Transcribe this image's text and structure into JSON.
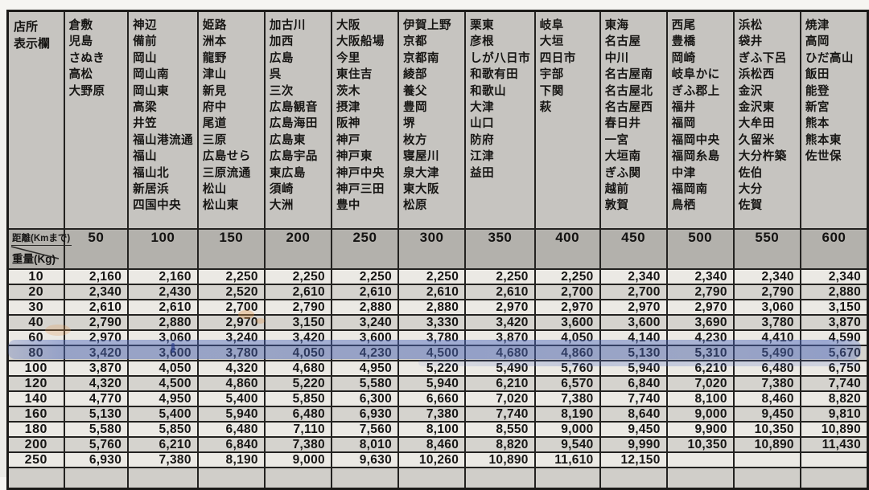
{
  "corner": {
    "line1": "店所",
    "line2": "表示欄"
  },
  "axis": {
    "distance_label": "距離(Kmまで)",
    "weight_label": "重量(Kg)"
  },
  "colors": {
    "highlight": "#5272c4",
    "paper": "#c9c7c3"
  },
  "table": {
    "columns": [
      {
        "distance": "50",
        "places": [
          "倉敷",
          "児島",
          "さぬき",
          "高松",
          "大野原"
        ]
      },
      {
        "distance": "100",
        "places": [
          "神辺",
          "備前",
          "岡山",
          "岡山南",
          "岡山東",
          "高梁",
          "井笠",
          "福山港流通",
          "福山",
          "福山北",
          "新居浜",
          "四国中央"
        ]
      },
      {
        "distance": "150",
        "places": [
          "姫路",
          "洲本",
          "龍野",
          "津山",
          "新見",
          "府中",
          "尾道",
          "三原",
          "広島せら",
          "三原流通",
          "松山",
          "松山東"
        ]
      },
      {
        "distance": "200",
        "places": [
          "加古川",
          "加西",
          "広島",
          "呉",
          "三次",
          "広島観音",
          "広島海田",
          "広島東",
          "広島宇品",
          "東広島",
          "須崎",
          "大洲"
        ]
      },
      {
        "distance": "250",
        "places": [
          "大阪",
          "大阪船場",
          "今里",
          "東住吉",
          "茨木",
          "摂津",
          "阪神",
          "神戸",
          "神戸東",
          "神戸中央",
          "神戸三田",
          "豊中"
        ]
      },
      {
        "distance": "300",
        "places": [
          "伊賀上野",
          "京都",
          "京都南",
          "綾部",
          "養父",
          "豊岡",
          "堺",
          "枚方",
          "寝屋川",
          "泉大津",
          "東大阪",
          "松原"
        ]
      },
      {
        "distance": "350",
        "places": [
          "栗東",
          "彦根",
          "しが八日市",
          "和歌有田",
          "和歌山",
          "大津",
          "山口",
          "防府",
          "江津",
          "益田"
        ]
      },
      {
        "distance": "400",
        "places": [
          "岐阜",
          "大垣",
          "四日市",
          "宇部",
          "下関",
          "萩"
        ]
      },
      {
        "distance": "450",
        "places": [
          "東海",
          "名古屋",
          "中川",
          "名古屋南",
          "名古屋北",
          "名古屋西",
          "春日井",
          "一宮",
          "大垣南",
          "ぎふ関",
          "越前",
          "敦賀"
        ]
      },
      {
        "distance": "500",
        "places": [
          "西尾",
          "豊橋",
          "岡崎",
          "岐阜かに",
          "ぎふ郡上",
          "福井",
          "福岡",
          "福岡中央",
          "福岡糸島",
          "中津",
          "福岡南",
          "鳥栖"
        ]
      },
      {
        "distance": "550",
        "places": [
          "浜松",
          "袋井",
          "ぎふ下呂",
          "浜松西",
          "金沢",
          "金沢東",
          "大牟田",
          "久留米",
          "大分杵築",
          "佐伯",
          "大分",
          "佐賀"
        ]
      },
      {
        "distance": "600",
        "places": [
          "焼津",
          "高岡",
          "ひだ高山",
          "飯田",
          "能登",
          "新宮",
          "熊本",
          "熊本東",
          "佐世保"
        ]
      }
    ],
    "rows": [
      {
        "weight": "10",
        "values": [
          "2,160",
          "2,160",
          "2,250",
          "2,250",
          "2,250",
          "2,250",
          "2,250",
          "2,250",
          "2,340",
          "2,340",
          "2,340",
          "2,340"
        ]
      },
      {
        "weight": "20",
        "values": [
          "2,340",
          "2,430",
          "2,520",
          "2,610",
          "2,610",
          "2,610",
          "2,610",
          "2,700",
          "2,700",
          "2,790",
          "2,790",
          "2,880"
        ]
      },
      {
        "weight": "30",
        "values": [
          "2,610",
          "2,610",
          "2,700",
          "2,790",
          "2,880",
          "2,880",
          "2,970",
          "2,970",
          "2,970",
          "2,970",
          "3,060",
          "3,150"
        ]
      },
      {
        "weight": "40",
        "values": [
          "2,790",
          "2,880",
          "2,970",
          "3,150",
          "3,240",
          "3,330",
          "3,420",
          "3,600",
          "3,600",
          "3,690",
          "3,780",
          "3,870"
        ]
      },
      {
        "weight": "60",
        "values": [
          "2,970",
          "3,060",
          "3,240",
          "3,420",
          "3,600",
          "3,780",
          "3,870",
          "4,050",
          "4,140",
          "4,230",
          "4,410",
          "4,590"
        ]
      },
      {
        "weight": "80",
        "values": [
          "3,420",
          "3,600",
          "3,780",
          "4,050",
          "4,230",
          "4,500",
          "4,680",
          "4,860",
          "5,130",
          "5,310",
          "5,490",
          "5,670"
        ]
      },
      {
        "weight": "100",
        "values": [
          "3,870",
          "4,050",
          "4,320",
          "4,680",
          "4,950",
          "5,220",
          "5,490",
          "5,760",
          "5,940",
          "6,210",
          "6,480",
          "6,750"
        ]
      },
      {
        "weight": "120",
        "values": [
          "4,320",
          "4,500",
          "4,860",
          "5,220",
          "5,580",
          "5,940",
          "6,210",
          "6,570",
          "6,840",
          "7,020",
          "7,380",
          "7,740"
        ]
      },
      {
        "weight": "140",
        "values": [
          "4,770",
          "4,950",
          "5,400",
          "5,850",
          "6,300",
          "6,660",
          "7,020",
          "7,380",
          "7,740",
          "8,100",
          "8,460",
          "8,820"
        ]
      },
      {
        "weight": "160",
        "values": [
          "5,130",
          "5,400",
          "5,940",
          "6,480",
          "6,930",
          "7,380",
          "7,740",
          "8,190",
          "8,640",
          "9,000",
          "9,450",
          "9,810"
        ]
      },
      {
        "weight": "180",
        "values": [
          "5,580",
          "5,850",
          "6,480",
          "7,110",
          "7,560",
          "8,100",
          "8,550",
          "9,000",
          "9,450",
          "9,900",
          "10,350",
          "10,890"
        ]
      },
      {
        "weight": "200",
        "values": [
          "5,760",
          "6,210",
          "6,840",
          "7,380",
          "8,010",
          "8,460",
          "8,820",
          "9,540",
          "9,990",
          "10,350",
          "10,890",
          "11,430"
        ]
      },
      {
        "weight": "250",
        "values": [
          "6,930",
          "7,380",
          "8,190",
          "9,000",
          "9,630",
          "10,260",
          "10,890",
          "11,610",
          "12,150",
          "",
          "",
          ""
        ]
      }
    ],
    "highlighted_row_weight": "80"
  }
}
